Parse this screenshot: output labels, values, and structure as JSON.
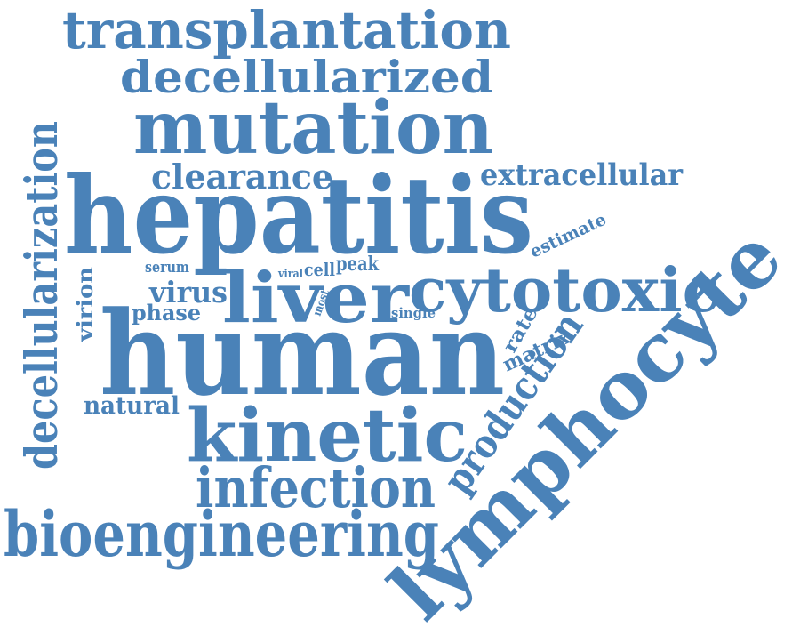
{
  "word_color": "#4a82b8",
  "background_color": "#ffffff",
  "words": {
    "transplantation": "transplantation",
    "decellularized": "decellularized",
    "mutation": "mutation",
    "clearance": "clearance",
    "extracellular": "extracellular",
    "hepatitis": "hepatitis",
    "estimate": "estimate",
    "decellularization": "decellularization",
    "serum": "serum",
    "viral": "viral",
    "cell": "cell",
    "peak": "peak",
    "liver": "liver",
    "cytotoxic": "cytotoxic",
    "virus": "virus",
    "phase": "phase",
    "most": "most",
    "single": "single",
    "virion": "virion",
    "rate": "rate",
    "matrix": "matrix",
    "human": "human",
    "production": "production",
    "lymphocyte": "lymphocyte",
    "natural": "natural",
    "kinetic": "kinetic",
    "infection": "infection",
    "bioengineering": "bioengineering"
  }
}
